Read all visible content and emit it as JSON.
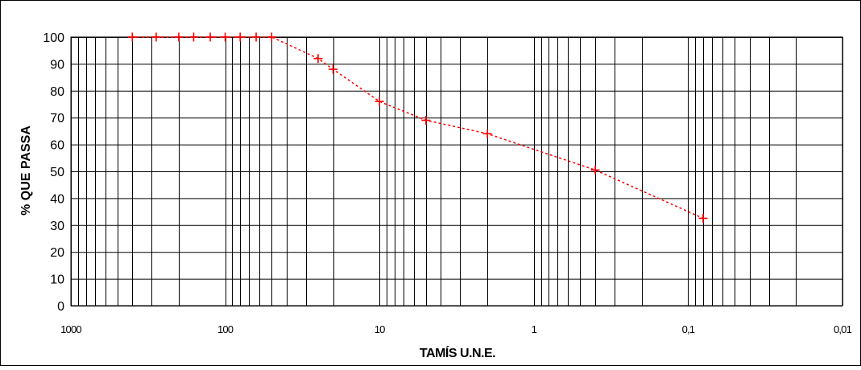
{
  "chart_data": {
    "type": "scatter",
    "title": "",
    "xlabel": "TAMÍS U.N.E.",
    "ylabel": "% QUE PASSA",
    "x_scale": "log",
    "x_reversed": true,
    "xlim": [
      1000,
      0.01
    ],
    "ylim": [
      0,
      100
    ],
    "grid": true,
    "legend": "none",
    "x_tick_labels": [
      "1000",
      "100",
      "10",
      "1",
      "0,1",
      "0,01"
    ],
    "x_tick_values": [
      1000,
      100,
      10,
      1,
      0.1,
      0.01
    ],
    "y_tick_labels": [
      "0",
      "10",
      "20",
      "30",
      "40",
      "50",
      "60",
      "70",
      "80",
      "90",
      "100"
    ],
    "y_tick_values": [
      0,
      10,
      20,
      30,
      40,
      50,
      60,
      70,
      80,
      90,
      100
    ],
    "series": [
      {
        "marker": "plus",
        "line_style": "dashed",
        "color": "#ff0000",
        "x": [
          400,
          280,
          200,
          160,
          125,
          100,
          80,
          63,
          50,
          25,
          20,
          10,
          5,
          2,
          0.4,
          0.08
        ],
        "y": [
          100,
          100,
          100,
          100,
          100,
          100,
          100,
          100,
          100,
          92,
          88,
          76,
          69,
          64,
          50.5,
          32.5
        ]
      }
    ],
    "colors": {
      "series": "#ff0000",
      "grid": "#000000",
      "background": "#ffffff"
    }
  }
}
